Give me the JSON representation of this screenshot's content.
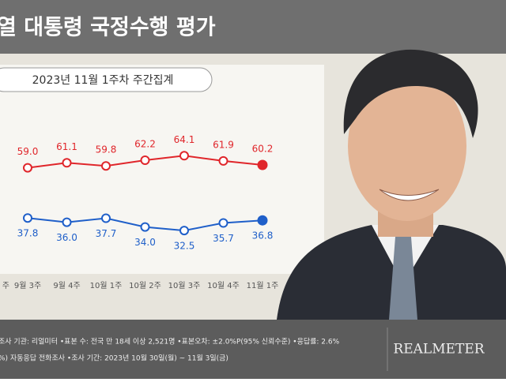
{
  "header": {
    "title": "열 대통령 국정수행 평가"
  },
  "chart_data": {
    "type": "line",
    "subtitle": "2023년 11월 1주차 주간집계",
    "categories": [
      "주",
      "9월 3주",
      "9월 4주",
      "10월 1주",
      "10월 2주",
      "10월 3주",
      "10월 4주",
      "11월 1주"
    ],
    "series": [
      {
        "color": "#e0262b",
        "values": [
          null,
          59.0,
          61.1,
          59.8,
          62.2,
          64.1,
          61.9,
          60.2
        ]
      },
      {
        "color": "#1f5fc9",
        "values": [
          null,
          37.8,
          36.0,
          37.7,
          34.0,
          32.5,
          35.7,
          36.8
        ]
      }
    ]
  },
  "footer": {
    "lines": [
      "조사 기관: 리얼미터 •표본 수: 전국 만 18세 이상 2,521명 •표본오차: ±2.0%P(95% 신뢰수준) •응답률: 2.6%",
      "%) 자동응답 전화조사 •조사 기간: 2023년 10월 30일(월) ~ 11월 3일(금)"
    ],
    "brand": "REALMETER"
  }
}
